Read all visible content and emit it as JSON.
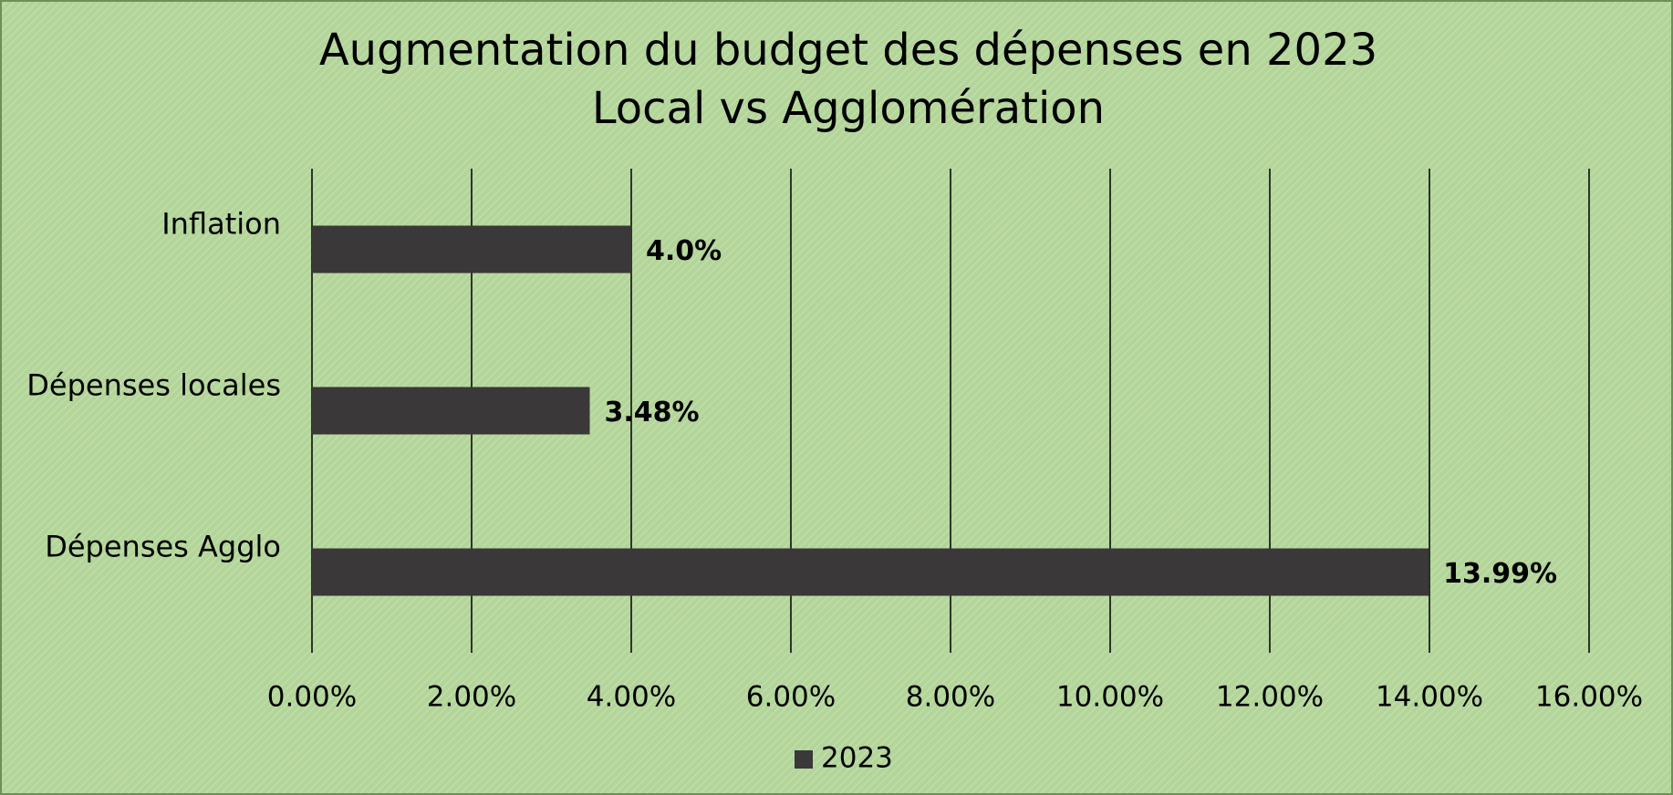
{
  "chart_data": {
    "type": "bar",
    "orientation": "horizontal",
    "title": "Augmentation du budget des dépenses en 2023",
    "subtitle": "Local vs Agglomération",
    "categories": [
      "Inflation",
      "Dépenses locales",
      "Dépenses Agglo"
    ],
    "series": [
      {
        "name": "2023",
        "color": "#3a3838",
        "values": [
          4.0,
          3.48,
          13.99
        ],
        "value_labels": [
          "4.0%",
          "3.48%",
          "13.99%"
        ]
      }
    ],
    "xlim": [
      0,
      16
    ],
    "xticks": [
      {
        "value": 0,
        "label": "0.00%"
      },
      {
        "value": 2,
        "label": "2.00%"
      },
      {
        "value": 4,
        "label": "4.00%"
      },
      {
        "value": 6,
        "label": "6.00%"
      },
      {
        "value": 8,
        "label": "8.00%"
      },
      {
        "value": 10,
        "label": "10.00%"
      },
      {
        "value": 12,
        "label": "12.00%"
      },
      {
        "value": 14,
        "label": "14.00%"
      },
      {
        "value": 16,
        "label": "16.00%"
      }
    ],
    "grid": true,
    "legend": "bottom"
  }
}
